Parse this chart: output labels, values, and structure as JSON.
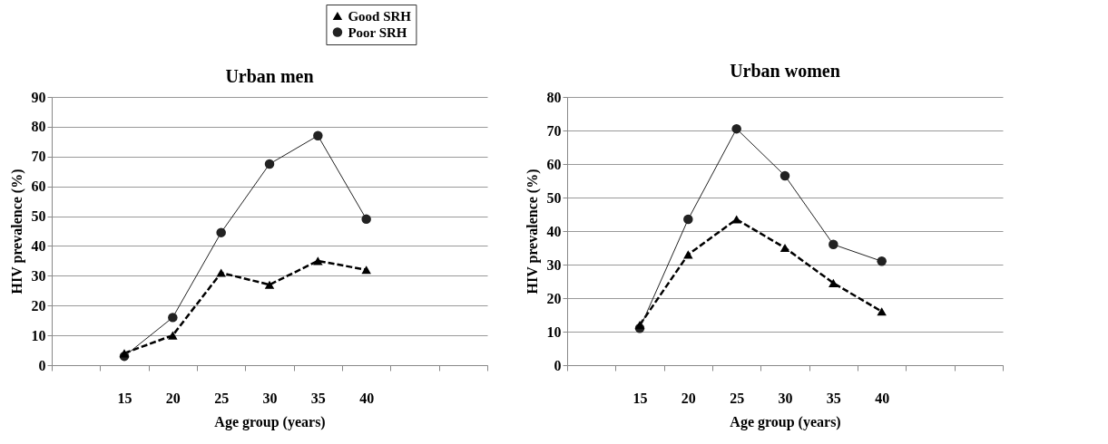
{
  "chart_data": [
    {
      "type": "line",
      "title": "Urban men",
      "xlabel": "Age group (years)",
      "ylabel": "HIV prevalence (%)",
      "categories": [
        null,
        "15",
        "20",
        "25",
        "30",
        "35",
        "40",
        null,
        null
      ],
      "ylim": [
        0,
        90
      ],
      "yticks": [
        0,
        10,
        20,
        30,
        40,
        50,
        60,
        70,
        80,
        90
      ],
      "grid": "y",
      "legend": "top right",
      "series": [
        {
          "name": "Good SRH",
          "color": "#000000",
          "marker": "triangle",
          "line_style": "dashed",
          "values": [
            null,
            4,
            10,
            31,
            27,
            35,
            32,
            null,
            null
          ]
        },
        {
          "name": "Poor SRH",
          "color": "#222222",
          "marker": "circle",
          "line_style": "solid",
          "values": [
            null,
            3,
            16,
            44.5,
            67.5,
            77,
            49,
            null,
            null
          ]
        }
      ]
    },
    {
      "type": "line",
      "title": "Urban women",
      "xlabel": "Age group (years)",
      "ylabel": "HIV prevalence (%)",
      "categories": [
        null,
        "15",
        "20",
        "25",
        "30",
        "35",
        "40",
        null,
        null
      ],
      "ylim": [
        0,
        80
      ],
      "yticks": [
        0,
        10,
        20,
        30,
        40,
        50,
        60,
        70,
        80
      ],
      "grid": "y",
      "series": [
        {
          "color": "#000000",
          "marker": "triangle",
          "line_style": "dashed",
          "values": [
            null,
            12,
            33,
            43.5,
            35,
            24.5,
            16,
            null,
            null
          ]
        },
        {
          "color": "#222222",
          "marker": "circle",
          "line_style": "solid",
          "values": [
            null,
            11,
            43.5,
            70.5,
            56.5,
            36,
            31,
            null,
            null
          ]
        }
      ]
    }
  ]
}
